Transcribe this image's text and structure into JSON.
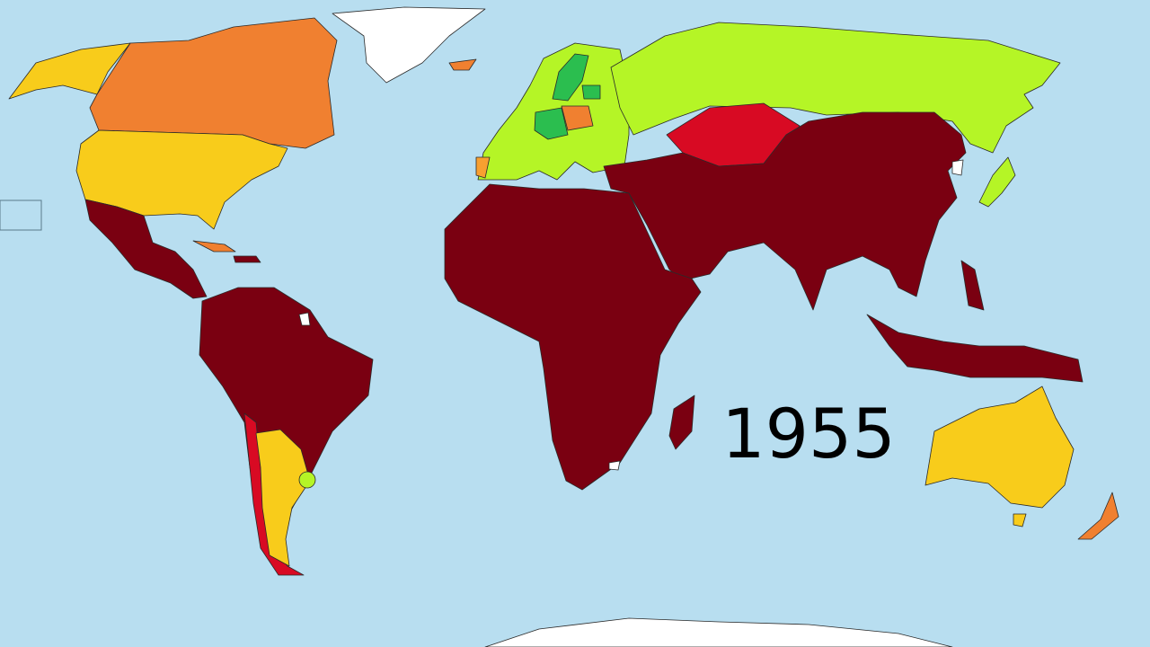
{
  "map": {
    "year_label": "1955"
  }
}
